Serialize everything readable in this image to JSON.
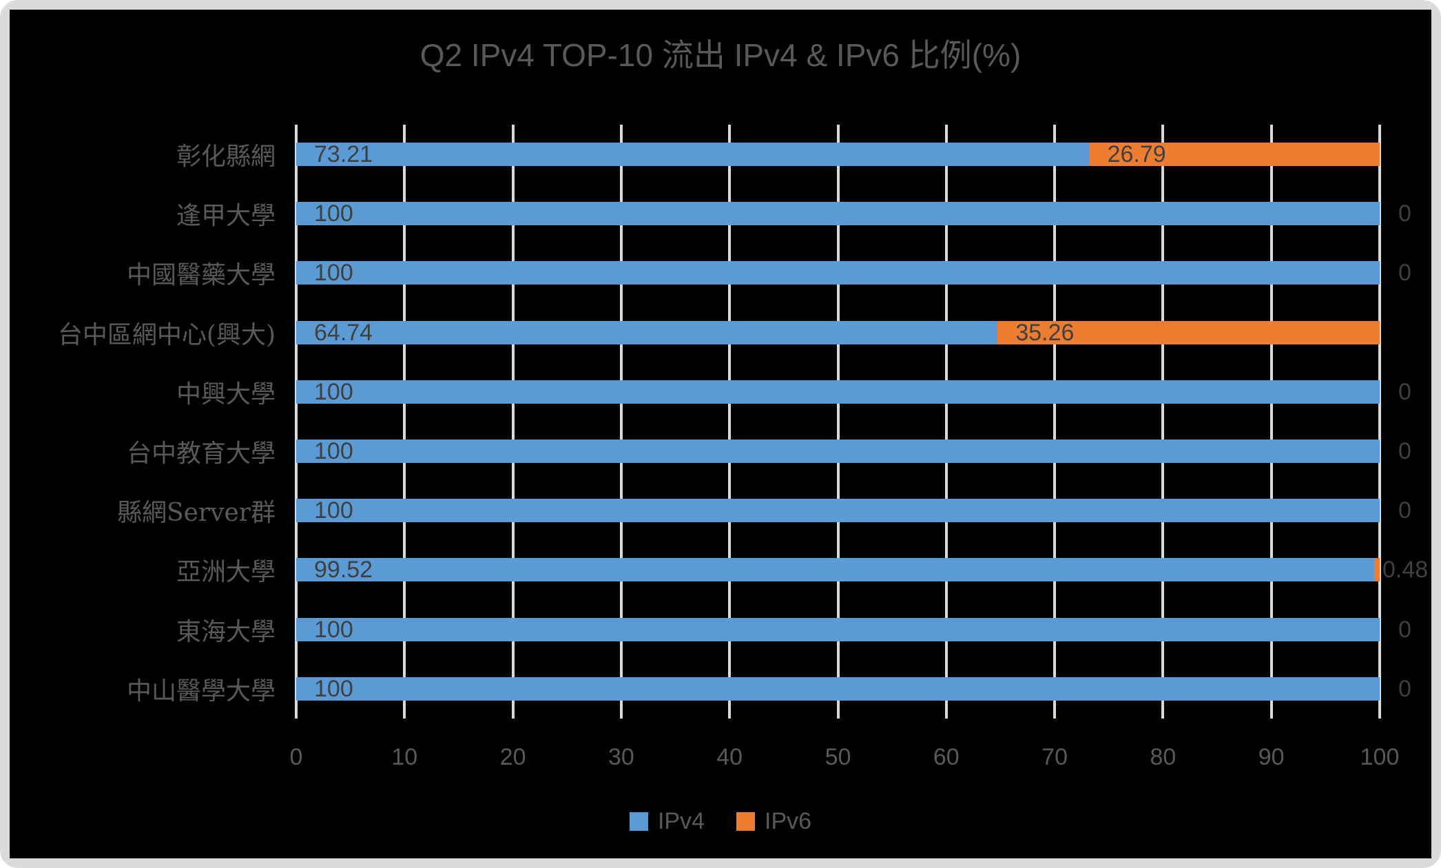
{
  "title": "Q2 IPv4 TOP-10 流出 IPv4 & IPv6 比例(%)",
  "colors": {
    "ipv4": "#5B9BD5",
    "ipv6": "#ED7D31",
    "chart_background": "#000000",
    "frame": "#DBDBDB",
    "gridline": "#D9D9D9",
    "axis_text": "#595959",
    "data_label_text": "#404040"
  },
  "chart_data": {
    "type": "bar",
    "orientation": "horizontal",
    "stacked": true,
    "title": "Q2 IPv4 TOP-10 流出 IPv4 & IPv6 比例(%)",
    "categories": [
      "彰化縣網",
      "逢甲大學",
      "中國醫藥大學",
      "台中區網中心(興大)",
      "中興大學",
      "台中教育大學",
      "縣網Server群",
      "亞洲大學",
      "東海大學",
      "中山醫學大學"
    ],
    "series": [
      {
        "name": "IPv4",
        "color": "#5B9BD5",
        "values": [
          73.21,
          100,
          100,
          64.74,
          100,
          100,
          100,
          99.52,
          100,
          100
        ]
      },
      {
        "name": "IPv6",
        "color": "#ED7D31",
        "values": [
          26.79,
          0,
          0,
          35.26,
          0,
          0,
          0,
          0.48,
          0,
          0
        ]
      }
    ],
    "xlim": [
      0,
      100
    ],
    "x_ticks": [
      0,
      10,
      20,
      30,
      40,
      50,
      60,
      70,
      80,
      90,
      100
    ],
    "xlabel": "",
    "ylabel": "",
    "grid": "vertical-major",
    "legend_position": "bottom",
    "data_labels": "shown"
  }
}
